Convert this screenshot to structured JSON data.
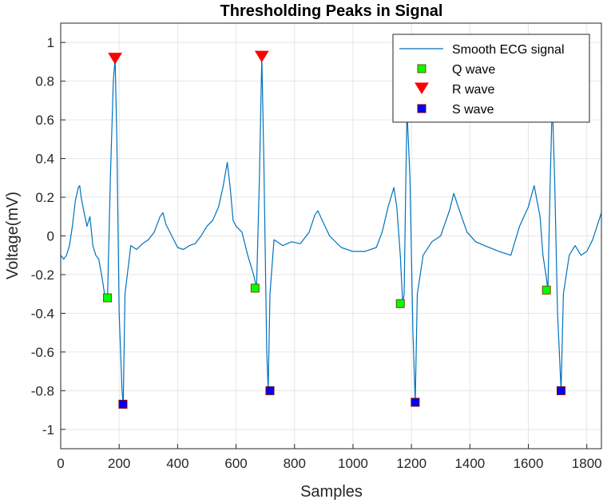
{
  "chart_data": {
    "type": "line",
    "title": "Thresholding Peaks in Signal",
    "xlabel": "Samples",
    "ylabel": "Voltage(mV)",
    "xlim": [
      0,
      1850
    ],
    "ylim": [
      -1.1,
      1.1
    ],
    "grid": true,
    "legend_placement": "top-right",
    "x_ticks": [
      0,
      200,
      400,
      600,
      800,
      1000,
      1200,
      1400,
      1600,
      1800
    ],
    "x_tick_labels": [
      "0",
      "200",
      "400",
      "600",
      "800",
      "1000",
      "1200",
      "1400",
      "1600",
      "1800"
    ],
    "y_ticks": [
      1,
      0.8,
      0.6,
      0.4,
      0.2,
      0,
      -0.2,
      -0.4,
      -0.6,
      -0.8,
      -1
    ],
    "y_tick_labels": [
      "1",
      "0.8",
      "0.6",
      "0.4",
      "0.2",
      "0",
      "-0.2",
      "-0.4",
      "-0.6",
      "-0.8",
      "-1"
    ],
    "colors": {
      "signal": "#0072BD",
      "q_fill": "#00FF00",
      "r_fill": "#FF0000",
      "s_fill": "#0000FF",
      "grid": "#e6e6e6",
      "axis": "#262626"
    },
    "series": [
      {
        "name": "Smooth ECG signal",
        "marker": "line",
        "x": [
          0,
          10,
          20,
          30,
          40,
          50,
          60,
          65,
          70,
          80,
          90,
          100,
          110,
          120,
          130,
          140,
          150,
          160,
          170,
          180,
          186,
          192,
          200,
          210,
          214,
          220,
          240,
          260,
          280,
          300,
          320,
          340,
          350,
          360,
          380,
          400,
          420,
          440,
          460,
          480,
          500,
          520,
          540,
          555,
          570,
          580,
          590,
          600,
          620,
          640,
          660,
          670,
          680,
          688,
          695,
          705,
          710,
          716,
          730,
          760,
          790,
          820,
          850,
          870,
          880,
          895,
          920,
          960,
          1000,
          1040,
          1080,
          1100,
          1120,
          1140,
          1150,
          1162,
          1170,
          1175,
          1180,
          1185,
          1195,
          1205,
          1213,
          1220,
          1240,
          1270,
          1300,
          1330,
          1345,
          1360,
          1390,
          1420,
          1450,
          1500,
          1540,
          1570,
          1600,
          1620,
          1640,
          1650,
          1660,
          1667,
          1675,
          1682,
          1690,
          1700,
          1712,
          1720,
          1740,
          1760,
          1780,
          1800,
          1820,
          1835,
          1850
        ],
        "y": [
          -0.1,
          -0.12,
          -0.1,
          -0.05,
          0.05,
          0.18,
          0.25,
          0.26,
          0.2,
          0.12,
          0.05,
          0.1,
          -0.05,
          -0.1,
          -0.12,
          -0.2,
          -0.3,
          -0.32,
          0.3,
          0.8,
          0.92,
          0.5,
          -0.4,
          -0.8,
          -0.87,
          -0.3,
          -0.05,
          -0.07,
          -0.04,
          -0.02,
          0.02,
          0.1,
          0.12,
          0.06,
          0.0,
          -0.06,
          -0.07,
          -0.05,
          -0.04,
          0.0,
          0.05,
          0.08,
          0.15,
          0.25,
          0.38,
          0.25,
          0.08,
          0.05,
          0.02,
          -0.1,
          -0.2,
          -0.27,
          0.3,
          0.93,
          0.4,
          -0.6,
          -0.8,
          -0.3,
          -0.02,
          -0.05,
          -0.03,
          -0.04,
          0.02,
          0.11,
          0.13,
          0.08,
          0.0,
          -0.06,
          -0.08,
          -0.08,
          -0.06,
          0.02,
          0.15,
          0.25,
          0.15,
          -0.1,
          -0.35,
          -0.3,
          0.2,
          0.65,
          0.3,
          -0.5,
          -0.86,
          -0.3,
          -0.1,
          -0.03,
          0.0,
          0.13,
          0.22,
          0.15,
          0.02,
          -0.03,
          -0.05,
          -0.08,
          -0.1,
          0.05,
          0.15,
          0.26,
          0.1,
          -0.1,
          -0.2,
          -0.28,
          0.3,
          0.7,
          0.3,
          -0.4,
          -0.8,
          -0.3,
          -0.1,
          -0.05,
          -0.1,
          -0.08,
          -0.02,
          0.05,
          0.12
        ]
      },
      {
        "name": "Q wave",
        "marker": "square",
        "x": [
          160,
          665,
          1162,
          1662
        ],
        "y": [
          -0.32,
          -0.27,
          -0.35,
          -0.28
        ]
      },
      {
        "name": "R wave",
        "marker": "triangle-down",
        "x": [
          186,
          688
        ],
        "y": [
          0.92,
          0.93
        ]
      },
      {
        "name": "S wave",
        "marker": "square",
        "x": [
          213,
          716,
          1213,
          1712
        ],
        "y": [
          -0.87,
          -0.8,
          -0.86,
          -0.8
        ]
      }
    ]
  }
}
